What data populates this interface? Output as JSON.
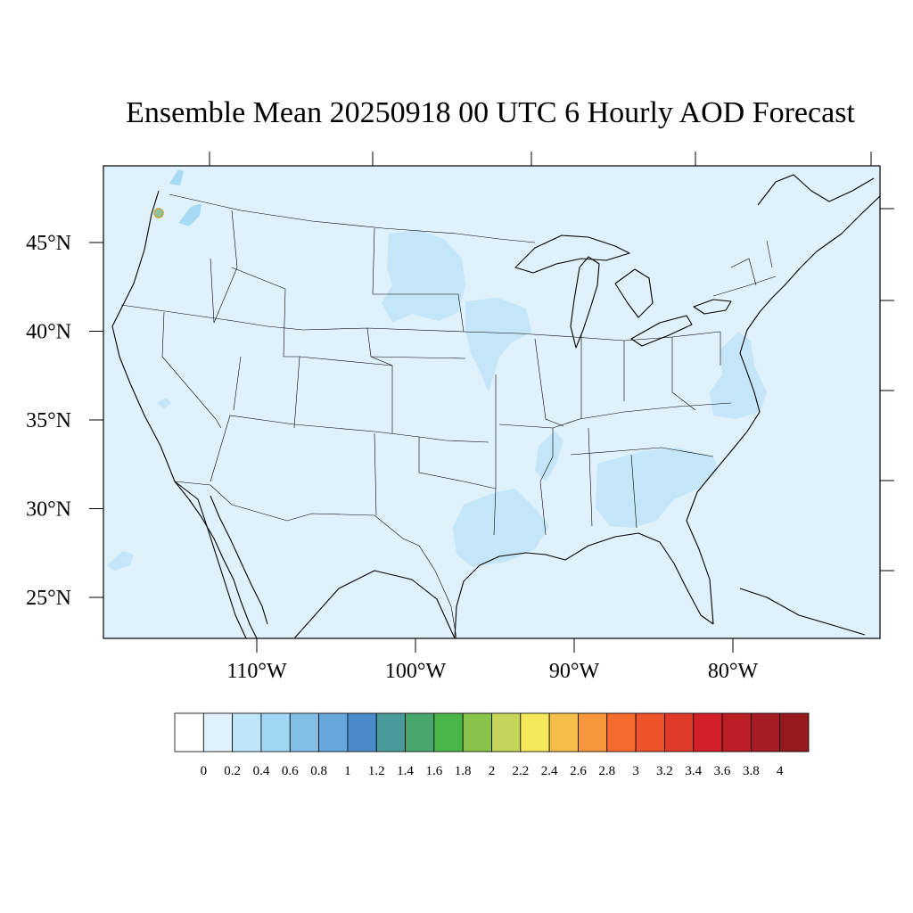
{
  "title": "Ensemble Mean 20250918 00 UTC 6 Hourly AOD Forecast",
  "colors": {
    "background_fill": "#dff1fb",
    "plume_light": "#c4e6f8",
    "plume_mid": "#a7daf4",
    "border": "#000000"
  },
  "map": {
    "lat_ticks": [
      {
        "value": 45,
        "label": "45°N"
      },
      {
        "value": 40,
        "label": "40°N"
      },
      {
        "value": 35,
        "label": "35°N"
      },
      {
        "value": 30,
        "label": "30°N"
      },
      {
        "value": 25,
        "label": "25°N"
      }
    ],
    "lon_ticks": [
      {
        "value": -110,
        "label": "110°W"
      },
      {
        "value": -100,
        "label": "100°W"
      },
      {
        "value": -90,
        "label": "90°W"
      },
      {
        "value": -80,
        "label": "80°W"
      }
    ]
  },
  "colorbar": {
    "labels": [
      "0",
      "0.2",
      "0.4",
      "0.6",
      "0.8",
      "1",
      "1.2",
      "1.4",
      "1.6",
      "1.8",
      "2",
      "2.2",
      "2.4",
      "2.6",
      "2.8",
      "3",
      "3.2",
      "3.4",
      "3.6",
      "3.8",
      "4"
    ],
    "colors": [
      "#ffffff",
      "#dff1fb",
      "#bfe6f8",
      "#9fd7f4",
      "#82bfe6",
      "#66a7dc",
      "#4a8bca",
      "#4a9a9c",
      "#48a56c",
      "#4ab64a",
      "#88c44c",
      "#c4d65a",
      "#f6e85c",
      "#f6bf4c",
      "#f6963c",
      "#f66a2e",
      "#ee542c",
      "#e03a2a",
      "#d22028",
      "#bc1e26",
      "#a61c24",
      "#941a1e"
    ]
  }
}
